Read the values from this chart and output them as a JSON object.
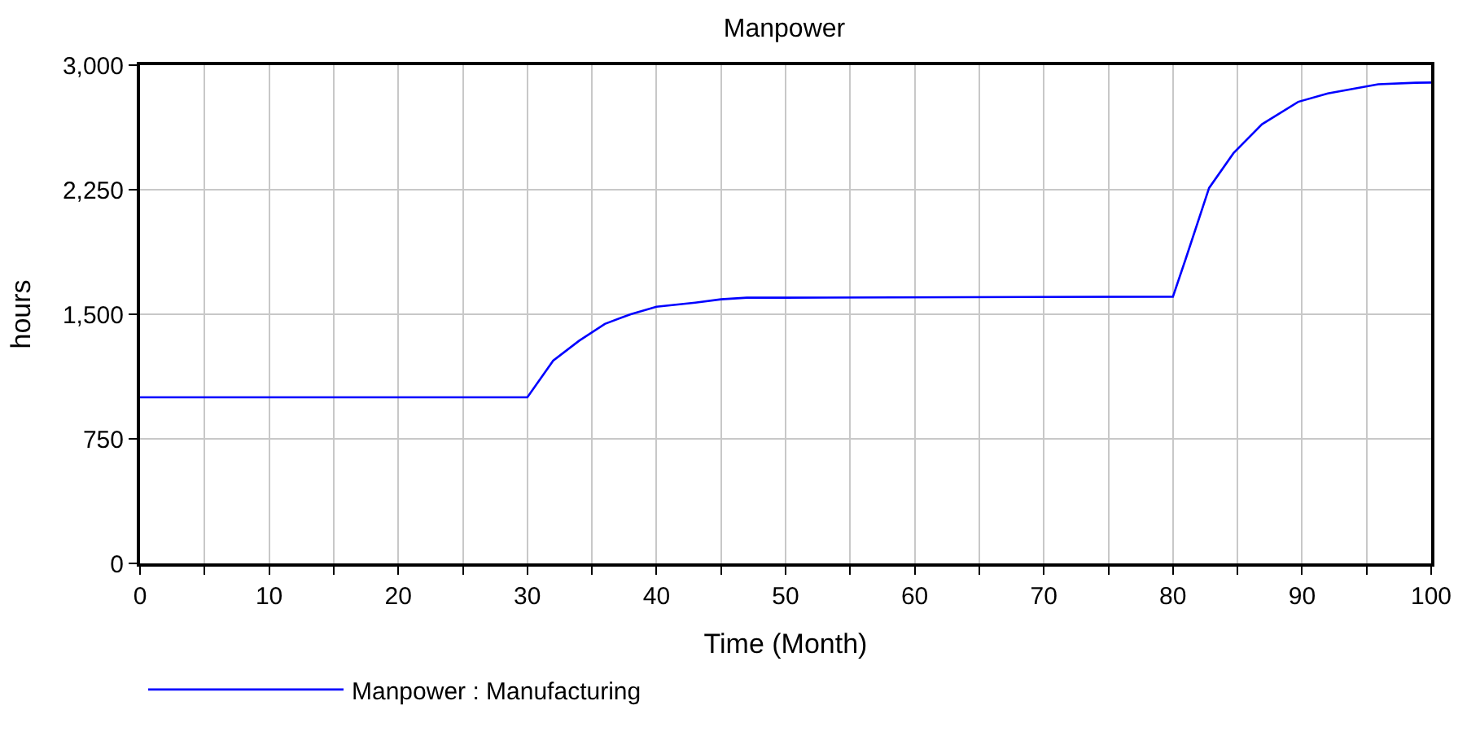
{
  "chart_data": {
    "type": "line",
    "title": "Manpower",
    "xlabel": "Time (Month)",
    "ylabel": "hours",
    "x": [
      0,
      30,
      32,
      34,
      36,
      38,
      40,
      43,
      45,
      47,
      50,
      80,
      81,
      82.8,
      84.7,
      86.9,
      89.7,
      92,
      95.9,
      98.8,
      100
    ],
    "series": [
      {
        "name": "Manpower : Manufacturing",
        "color": "#0000ff",
        "values": [
          1000,
          1000,
          1221,
          1340,
          1442,
          1500,
          1545,
          1570,
          1590,
          1600,
          1600,
          1606,
          1836,
          2260,
          2471,
          2644,
          2779,
          2830,
          2885,
          2894,
          2895
        ]
      }
    ],
    "xlim": [
      0,
      100
    ],
    "xticks": [
      0,
      {
        "value": 5,
        "label": null
      },
      10,
      {
        "value": 15,
        "label": null
      },
      20,
      {
        "value": 25,
        "label": null
      },
      30,
      {
        "value": 35,
        "label": null
      },
      40,
      {
        "value": 45,
        "label": null
      },
      50,
      {
        "value": 55,
        "label": null
      },
      60,
      {
        "value": 65,
        "label": null
      },
      70,
      {
        "value": 75,
        "label": null
      },
      80,
      {
        "value": 85,
        "label": null
      },
      90,
      {
        "value": 95,
        "label": null
      },
      100
    ],
    "ylim": [
      0,
      3000
    ],
    "yticks": [
      {
        "value": 0,
        "label": "0"
      },
      {
        "value": 750,
        "label": "750"
      },
      {
        "value": 1500,
        "label": "1,500"
      },
      {
        "value": 2250,
        "label": "2,250"
      },
      {
        "value": 3000,
        "label": "3,000"
      }
    ],
    "grid": true,
    "legend": "bottom"
  }
}
